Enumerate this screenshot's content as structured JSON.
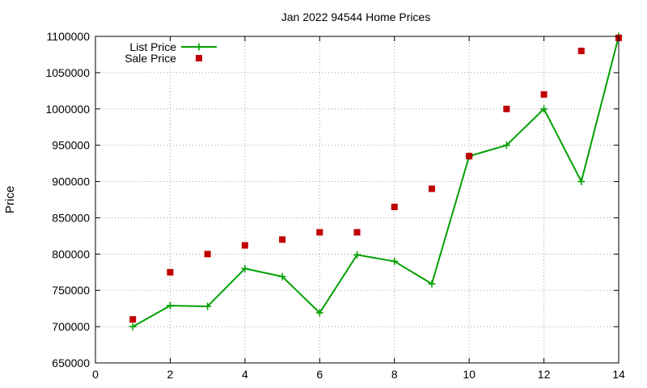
{
  "chart_data": {
    "type": "line",
    "title": "Jan 2022 94544 Home Prices",
    "xlabel": "",
    "ylabel": "Price",
    "xlim": [
      0,
      14
    ],
    "ylim": [
      650000,
      1100000
    ],
    "xticks": [
      0,
      2,
      4,
      6,
      8,
      10,
      12,
      14
    ],
    "yticks": [
      650000,
      700000,
      750000,
      800000,
      850000,
      900000,
      950000,
      1000000,
      1050000,
      1100000
    ],
    "grid": true,
    "legend_position": "top-left",
    "series": [
      {
        "name": "List Price",
        "style": "line-plus",
        "color": "#00a000",
        "x": [
          1,
          2,
          3,
          4,
          5,
          6,
          7,
          8,
          9,
          10,
          11,
          12,
          13,
          14
        ],
        "y": [
          700000,
          729000,
          728000,
          780000,
          769000,
          719000,
          799000,
          790000,
          759000,
          935000,
          950000,
          1000000,
          900000,
          1100000
        ]
      },
      {
        "name": "Sale Price",
        "style": "square-points",
        "color": "#c00000",
        "x": [
          1,
          2,
          3,
          4,
          5,
          6,
          7,
          8,
          9,
          10,
          11,
          12,
          13,
          14
        ],
        "y": [
          710000,
          775000,
          800000,
          812000,
          820000,
          830000,
          830000,
          865000,
          890000,
          935000,
          1000000,
          1020000,
          1080000,
          1098000
        ]
      }
    ]
  }
}
